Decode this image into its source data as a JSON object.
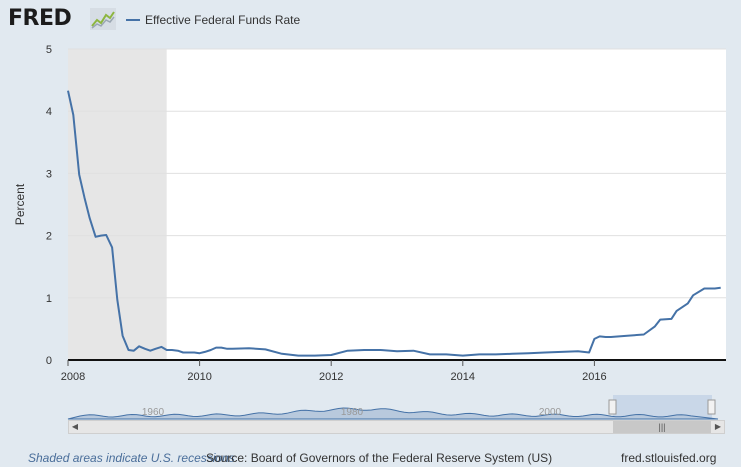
{
  "header": {
    "logo_text": "FRED",
    "logo_icon": "trend-line-icon",
    "legend_label": "Effective Federal Funds Rate"
  },
  "colors": {
    "series": "#4572a7",
    "recession_shade": "#e6e6e6",
    "page_bg": "#e1e9f0",
    "plot_bg": "#ffffff",
    "navigator_fill": "#b8c9dd"
  },
  "chart_data": {
    "type": "line",
    "xlabel": "",
    "ylabel": "Percent",
    "xlim": [
      2008.0,
      2018.0
    ],
    "ylim": [
      0,
      5
    ],
    "x_ticks": [
      "2008",
      "2010",
      "2012",
      "2014",
      "2016"
    ],
    "y_ticks": [
      "0",
      "1",
      "2",
      "3",
      "4",
      "5"
    ],
    "grid": true,
    "recession_shading": [
      [
        2008.0,
        2009.5
      ]
    ],
    "series": [
      {
        "name": "Effective Federal Funds Rate",
        "x": [
          2008.0,
          2008.08,
          2008.17,
          2008.25,
          2008.33,
          2008.42,
          2008.5,
          2008.58,
          2008.67,
          2008.75,
          2008.83,
          2008.92,
          2009.0,
          2009.08,
          2009.17,
          2009.25,
          2009.33,
          2009.42,
          2009.5,
          2009.58,
          2009.67,
          2009.75,
          2009.83,
          2009.92,
          2010.0,
          2010.08,
          2010.17,
          2010.25,
          2010.33,
          2010.42,
          2010.5,
          2010.75,
          2011.0,
          2011.25,
          2011.5,
          2011.75,
          2012.0,
          2012.25,
          2012.5,
          2012.75,
          2013.0,
          2013.25,
          2013.5,
          2013.75,
          2014.0,
          2014.25,
          2014.5,
          2014.75,
          2015.0,
          2015.25,
          2015.5,
          2015.75,
          2015.92,
          2016.0,
          2016.08,
          2016.17,
          2016.25,
          2016.5,
          2016.75,
          2016.92,
          2017.0,
          2017.17,
          2017.25,
          2017.42,
          2017.5,
          2017.67,
          2017.83,
          2017.92
        ],
        "values": [
          4.33,
          3.94,
          2.98,
          2.61,
          2.28,
          1.98,
          2.0,
          2.01,
          1.81,
          0.97,
          0.39,
          0.16,
          0.15,
          0.22,
          0.18,
          0.15,
          0.18,
          0.21,
          0.16,
          0.16,
          0.15,
          0.12,
          0.12,
          0.12,
          0.11,
          0.13,
          0.16,
          0.2,
          0.2,
          0.18,
          0.18,
          0.19,
          0.17,
          0.1,
          0.07,
          0.07,
          0.08,
          0.15,
          0.16,
          0.16,
          0.14,
          0.15,
          0.09,
          0.09,
          0.07,
          0.09,
          0.09,
          0.1,
          0.11,
          0.12,
          0.13,
          0.14,
          0.12,
          0.34,
          0.38,
          0.37,
          0.37,
          0.39,
          0.41,
          0.54,
          0.65,
          0.66,
          0.79,
          0.91,
          1.04,
          1.15,
          1.15,
          1.16
        ]
      }
    ]
  },
  "navigator": {
    "labels": [
      "1960",
      "1980",
      "2000"
    ]
  },
  "scrollbar": {
    "left_arrow": "◀",
    "right_arrow": "▶",
    "thumb_grip": "|||"
  },
  "footer": {
    "note": "Shaded areas indicate U.S. recessions",
    "source": "Source: Board of Governors of the Federal Reserve System (US)",
    "site": "fred.stlouisfed.org"
  }
}
